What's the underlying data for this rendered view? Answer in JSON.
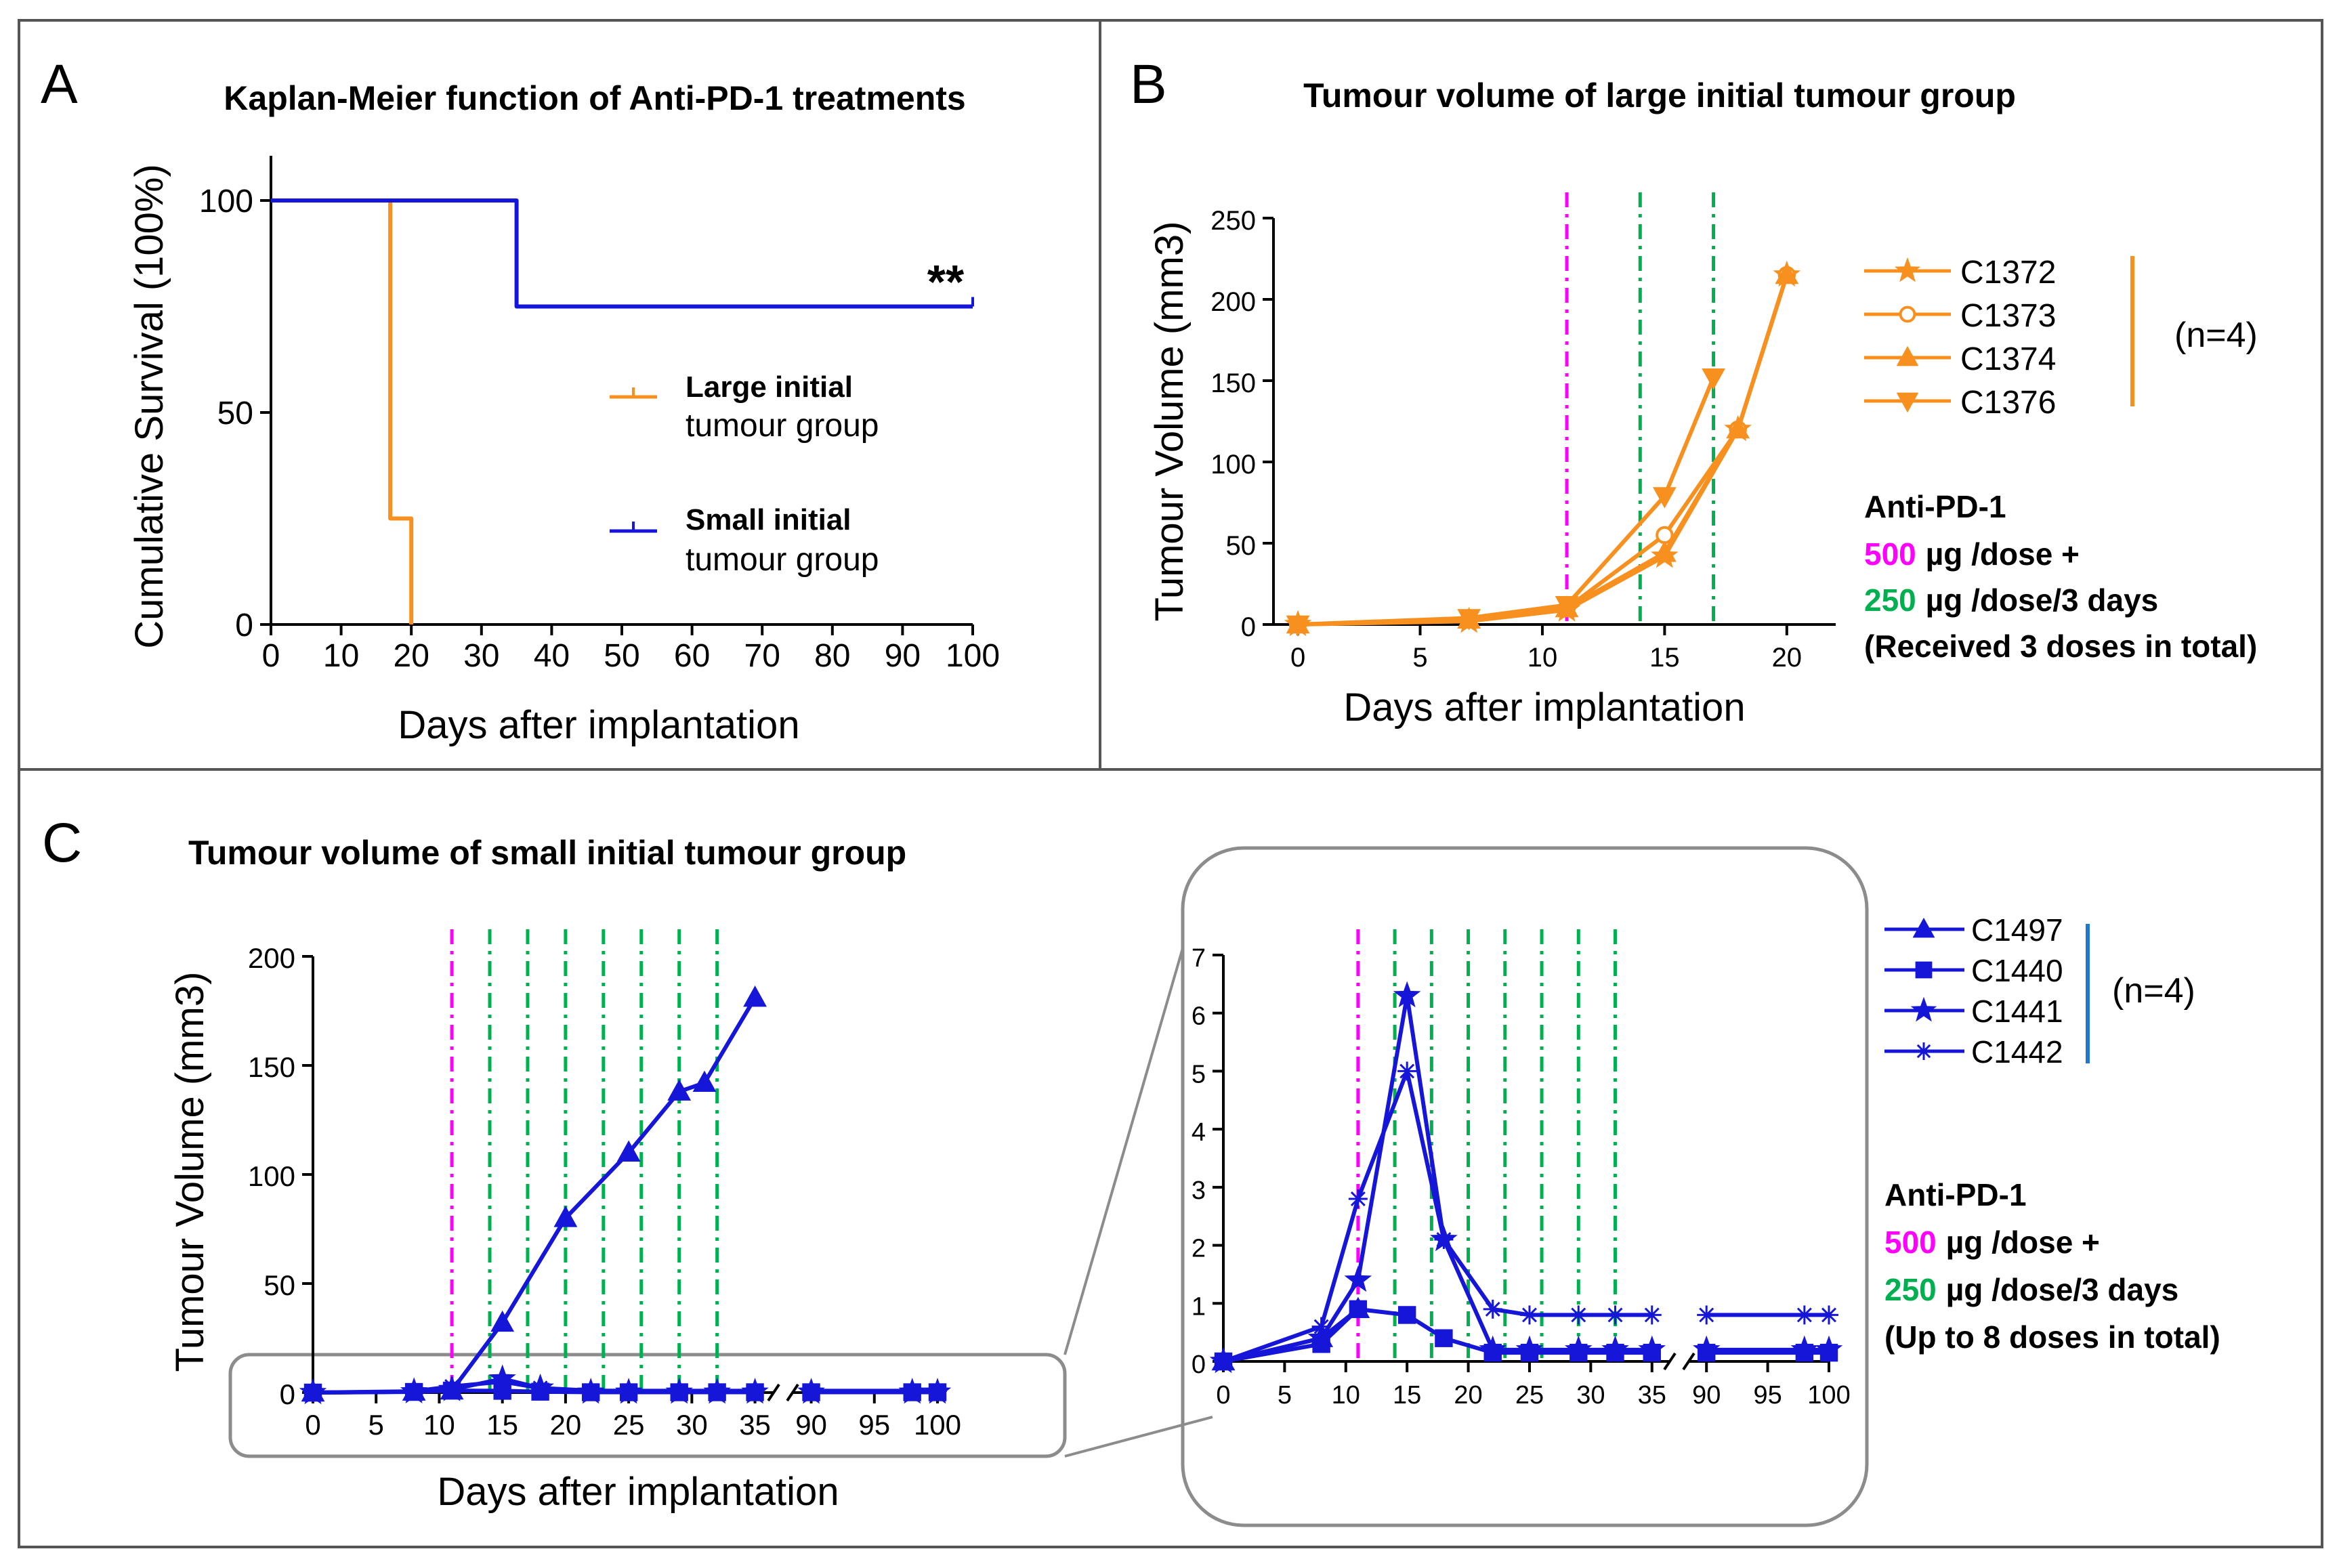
{
  "colors": {
    "orange": "#F7901E",
    "blue": "#1616D8",
    "magenta": "#FF00FF",
    "green": "#00B050",
    "frame": "#555555",
    "zoom_box": "#8C8C8C"
  },
  "chart_data": [
    {
      "panel": "A",
      "type": "line",
      "title": "Kaplan-Meier function of Anti-PD-1 treatments",
      "xlabel": "Days after implantation",
      "ylabel": "Cumulative Survival (100%)",
      "xlim": [
        0,
        100
      ],
      "ylim": [
        0,
        100
      ],
      "xticks": [
        0,
        10,
        20,
        30,
        40,
        50,
        60,
        70,
        80,
        90,
        100
      ],
      "yticks": [
        0,
        50,
        100
      ],
      "annotation": "**",
      "series": [
        {
          "name_line1": "Large initial",
          "name_line2": "tumour group",
          "color": "orange",
          "x": [
            0,
            17,
            17,
            20,
            20
          ],
          "y": [
            100,
            100,
            25,
            25,
            0
          ]
        },
        {
          "name_line1": "Small initial",
          "name_line2": "tumour group",
          "color": "blue",
          "x": [
            0,
            35,
            35,
            100
          ],
          "y": [
            100,
            100,
            75,
            75
          ]
        }
      ]
    },
    {
      "panel": "B",
      "type": "line",
      "title": "Tumour volume of large initial tumour group",
      "xlabel": "Days after implantation",
      "ylabel": "Tumour Volume (mm3)",
      "xlim": [
        -1,
        22
      ],
      "ylim": [
        0,
        250
      ],
      "xticks": [
        0,
        5,
        10,
        15,
        20
      ],
      "yticks": [
        0,
        50,
        100,
        150,
        200,
        250
      ],
      "dose_lines": {
        "first": [
          11
        ],
        "subsequent": [
          14,
          17
        ]
      },
      "legend_group": "(n=4)",
      "series": [
        {
          "name": "C1372",
          "marker": "star",
          "x": [
            0,
            7,
            11,
            15,
            18,
            20
          ],
          "y": [
            0,
            2,
            9,
            42,
            120,
            215
          ]
        },
        {
          "name": "C1373",
          "marker": "circle",
          "x": [
            0,
            7,
            11,
            15,
            18,
            20
          ],
          "y": [
            0,
            3,
            10,
            55,
            120,
            215
          ]
        },
        {
          "name": "C1374",
          "marker": "triangle-up",
          "x": [
            0,
            7,
            11,
            15,
            18,
            20
          ],
          "y": [
            0,
            3,
            10,
            44,
            120,
            215
          ]
        },
        {
          "name": "C1376",
          "marker": "triangle-down",
          "x": [
            0,
            7,
            11,
            15,
            17
          ],
          "y": [
            0,
            4,
            12,
            79,
            152
          ]
        }
      ],
      "treatment": {
        "heading": "Anti-PD-1",
        "first_dose_value": "500",
        "first_dose_unit": "µg /dose +",
        "later_dose_value": "250",
        "later_dose_unit": "µg /dose/3 days",
        "note": "(Received 3 doses in total)"
      }
    },
    {
      "panel": "C",
      "type": "line",
      "title": "Tumour volume of small initial tumour group",
      "xlabel": "Days after implantation",
      "ylabel": "Tumour Volume (mm3)",
      "x_break_after": 35,
      "xticks": [
        0,
        5,
        10,
        15,
        20,
        25,
        30,
        35,
        90,
        95,
        100
      ],
      "ylim": [
        0,
        200
      ],
      "yticks": [
        0,
        50,
        100,
        150,
        200
      ],
      "dose_lines": {
        "first": [
          11
        ],
        "subsequent": [
          14,
          17,
          20,
          23,
          26,
          29,
          32
        ]
      },
      "series": [
        {
          "name": "C1497",
          "marker": "triangle-up",
          "x": [
            0,
            8,
            11,
            15,
            20,
            25,
            29,
            31,
            35
          ],
          "y": [
            0,
            0.4,
            0.9,
            32,
            80,
            110,
            138,
            142,
            181
          ]
        },
        {
          "name": "C1440",
          "marker": "square",
          "x": [
            0,
            8,
            11,
            15,
            18,
            22,
            25,
            29,
            32,
            35,
            90,
            98,
            100
          ],
          "y": [
            0,
            0.3,
            0.9,
            0.8,
            0.4,
            0.15,
            0.15,
            0.15,
            0.15,
            0.15,
            0.15,
            0.15,
            0.15
          ]
        },
        {
          "name": "C1441",
          "marker": "star",
          "x": [
            0,
            8,
            11,
            15,
            18,
            22,
            25,
            29,
            32,
            35,
            90,
            98,
            100
          ],
          "y": [
            0,
            0.4,
            1.4,
            6.3,
            2.1,
            0.2,
            0.2,
            0.2,
            0.2,
            0.2,
            0.2,
            0.2,
            0.2
          ]
        },
        {
          "name": "C1442",
          "marker": "asterisk",
          "x": [
            0,
            8,
            11,
            15,
            18,
            22,
            25,
            29,
            32,
            35,
            90,
            98,
            100
          ],
          "y": [
            0,
            0.6,
            2.8,
            5.0,
            2.1,
            0.9,
            0.8,
            0.8,
            0.8,
            0.8,
            0.8,
            0.8,
            0.8
          ]
        }
      ],
      "inset": {
        "ylim": [
          0,
          7
        ],
        "yticks": [
          0,
          1,
          2,
          3,
          4,
          5,
          6,
          7
        ],
        "xticks": [
          0,
          5,
          10,
          15,
          20,
          25,
          30,
          35,
          90,
          95,
          100
        ]
      },
      "legend_group": "(n=4)",
      "treatment": {
        "heading": "Anti-PD-1",
        "first_dose_value": "500",
        "first_dose_unit": "µg /dose +",
        "later_dose_value": "250",
        "later_dose_unit": "µg /dose/3 days",
        "note": "(Up to 8 doses in total)"
      }
    }
  ]
}
